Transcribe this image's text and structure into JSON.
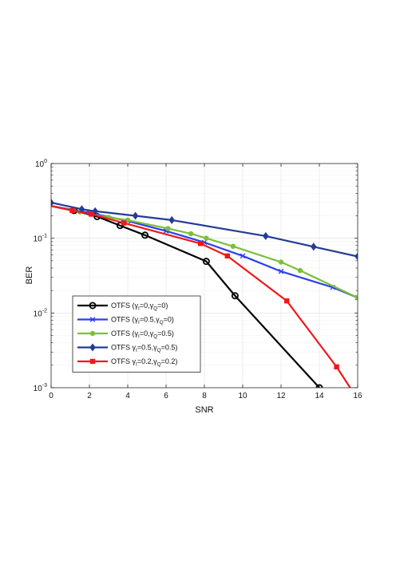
{
  "chart_data": {
    "type": "line",
    "title": "",
    "xlabel": "SNR",
    "ylabel": "BER",
    "xlim": [
      0,
      16
    ],
    "ylim": [
      0.001,
      1
    ],
    "yscale": "log",
    "grid": true,
    "legend_position": "lower-left",
    "xticks": [
      0,
      2,
      4,
      6,
      8,
      10,
      12,
      14,
      16
    ],
    "yticks": [
      {
        "value": 1,
        "base": "10",
        "exp": "0"
      },
      {
        "value": 0.1,
        "base": "10",
        "exp": "-1"
      },
      {
        "value": 0.01,
        "base": "10",
        "exp": "-2"
      },
      {
        "value": 0.001,
        "base": "10",
        "exp": "-3"
      }
    ],
    "series": [
      {
        "name": "OTFS (γI=0,γQ=0)",
        "legend": {
          "pre": "OTFS (",
          "g1": "γ",
          "s1": "I",
          "m1": "=0,",
          "g2": "γ",
          "s2": "Q",
          "m2": "=0)"
        },
        "color": "#000000",
        "marker": "circle",
        "x": [
          0,
          1.2,
          2.4,
          3.6,
          4.9,
          8.1,
          9.6,
          14
        ],
        "y": [
          0.27,
          0.235,
          0.195,
          0.148,
          0.11,
          0.049,
          0.017,
          0.001
        ]
      },
      {
        "name": "OTFS (γI=0.5,γQ=0)",
        "legend": {
          "pre": "OTFS (",
          "g1": "γ",
          "s1": "I",
          "m1": "=0.5,",
          "g2": "γ",
          "s2": "Q",
          "m2": "=0)"
        },
        "color": "#2b3ff0",
        "marker": "x",
        "x": [
          0,
          2,
          4,
          6,
          8,
          10,
          12,
          14.7,
          16
        ],
        "y": [
          0.27,
          0.22,
          0.17,
          0.125,
          0.088,
          0.058,
          0.036,
          0.022,
          0.016
        ]
      },
      {
        "name": "OTFS (γI=0,γQ=0.5)",
        "legend": {
          "pre": "OTFS (",
          "g1": "γ",
          "s1": "I",
          "m1": "=0,",
          "g2": "γ",
          "s2": "Q",
          "m2": "=0.5)"
        },
        "color": "#7cbf3a",
        "marker": "dot",
        "x": [
          0,
          1.5,
          3,
          4,
          6.1,
          7.3,
          8.1,
          9.5,
          12,
          13,
          16
        ],
        "y": [
          0.27,
          0.225,
          0.19,
          0.175,
          0.135,
          0.115,
          0.1,
          0.078,
          0.048,
          0.037,
          0.016
        ]
      },
      {
        "name": "OTFS γI=0.5,γQ=0.5)",
        "legend": {
          "pre": "OTFS ",
          "g1": "γ",
          "s1": "I",
          "m1": "=0.5,",
          "g2": "γ",
          "s2": "Q",
          "m2": "=0.5)"
        },
        "color": "#233c96",
        "marker": "diamond",
        "x": [
          0,
          1.6,
          2.3,
          4.4,
          6.3,
          11.2,
          13.7,
          16
        ],
        "y": [
          0.3,
          0.245,
          0.23,
          0.2,
          0.175,
          0.107,
          0.077,
          0.057
        ]
      },
      {
        "name": "OTFS γI=0.2,γQ=0.2)",
        "legend": {
          "pre": "OTFS ",
          "g1": "γ",
          "s1": "I",
          "m1": "=0.2,",
          "g2": "γ",
          "s2": "Q",
          "m2": "=0.2)"
        },
        "color": "#f01818",
        "marker": "square",
        "x": [
          0,
          1.1,
          2.1,
          3.8,
          7.8,
          9.2,
          12.3,
          14.9,
          16
        ],
        "y": [
          0.27,
          0.235,
          0.21,
          0.16,
          0.085,
          0.058,
          0.0145,
          0.0019,
          0.0007
        ]
      }
    ]
  }
}
